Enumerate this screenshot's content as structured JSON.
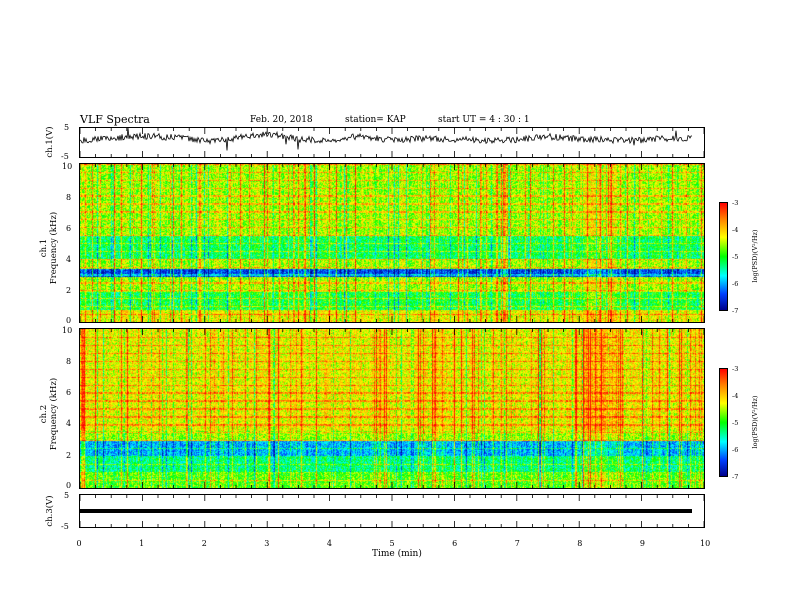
{
  "header": {
    "title": "VLF Spectra",
    "date": "Feb. 20, 2018",
    "station": "station= KAP",
    "start": "start  UT =   4 : 30 : 1"
  },
  "colors": {
    "trace": "#000000",
    "colormap": [
      "#00008a",
      "#0040ff",
      "#00ffff",
      "#00ff00",
      "#ffff00",
      "#ff8000",
      "#ff0000"
    ]
  },
  "chart_data": [
    {
      "id": "ch1-waveform",
      "type": "line",
      "ylabel": "ch.1(V)",
      "ylim": [
        -5,
        5
      ],
      "yticks": [
        "5",
        "-5"
      ],
      "xlim": [
        0,
        10
      ],
      "x": [
        0,
        0.5,
        1,
        1.5,
        2,
        2.5,
        3,
        3.5,
        4,
        4.5,
        5,
        5.5,
        6,
        6.5,
        7,
        7.5,
        8,
        8.5,
        9,
        9.5,
        9.8
      ],
      "y": [
        0.8,
        1.6,
        2.2,
        1.8,
        0.5,
        1.5,
        3.0,
        1.2,
        0.6,
        2.4,
        0.7,
        1.4,
        1.1,
        0.8,
        1.0,
        2.0,
        1.2,
        0.9,
        0.8,
        1.5,
        1.3
      ]
    },
    {
      "id": "ch1-spectrogram",
      "type": "heatmap",
      "ylabel": "ch.1\nFrequency (kHz)",
      "ylim": [
        0,
        10
      ],
      "yticks": [
        "0",
        "2",
        "4",
        "6",
        "8",
        "10"
      ],
      "xlim": [
        0,
        10
      ],
      "colorbar": {
        "range": [
          -7,
          -3
        ],
        "ticks": [
          "-3",
          "-4",
          "-5",
          "-6",
          "-7"
        ],
        "label": "log(PSD)(V²/Hz)"
      },
      "bands_khz": [
        {
          "f0": 0,
          "f1": 0.8,
          "level": -4.3
        },
        {
          "f0": 0.8,
          "f1": 2.0,
          "level": -5.1
        },
        {
          "f0": 2.0,
          "f1": 2.9,
          "level": -4.6
        },
        {
          "f0": 2.9,
          "f1": 3.4,
          "level": -6.4
        },
        {
          "f0": 3.4,
          "f1": 4.0,
          "level": -4.6
        },
        {
          "f0": 4.0,
          "f1": 5.5,
          "level": -5.2
        },
        {
          "f0": 5.5,
          "f1": 10,
          "level": -4.6
        }
      ]
    },
    {
      "id": "ch2-spectrogram",
      "type": "heatmap",
      "ylabel": "ch.2\nFrequency (kHz)",
      "ylim": [
        0,
        10
      ],
      "yticks": [
        "0",
        "2",
        "4",
        "6",
        "8",
        "10"
      ],
      "xlim": [
        0,
        10
      ],
      "colorbar": {
        "range": [
          -7,
          -3
        ],
        "ticks": [
          "-3",
          "-4",
          "-5",
          "-6",
          "-7"
        ],
        "label": "log(PSD)(V²/Hz)"
      },
      "bands_khz": [
        {
          "f0": 0,
          "f1": 1.0,
          "level": -4.8
        },
        {
          "f0": 1.0,
          "f1": 2.0,
          "level": -5.3
        },
        {
          "f0": 2.0,
          "f1": 3.0,
          "level": -5.9
        },
        {
          "f0": 3.0,
          "f1": 3.6,
          "level": -4.6
        },
        {
          "f0": 3.6,
          "f1": 10,
          "level": -4.3
        }
      ]
    },
    {
      "id": "ch3-waveform",
      "type": "line",
      "ylabel": "ch.3(V)",
      "ylim": [
        -5,
        5
      ],
      "yticks": [
        "5",
        "-5"
      ],
      "xlim": [
        0,
        10
      ],
      "x": [
        0,
        9.8
      ],
      "y": [
        0,
        0
      ]
    }
  ],
  "xaxis": {
    "label": "Time (min)",
    "ticks": [
      "0",
      "1",
      "2",
      "3",
      "4",
      "5",
      "6",
      "7",
      "8",
      "9",
      "10"
    ]
  }
}
